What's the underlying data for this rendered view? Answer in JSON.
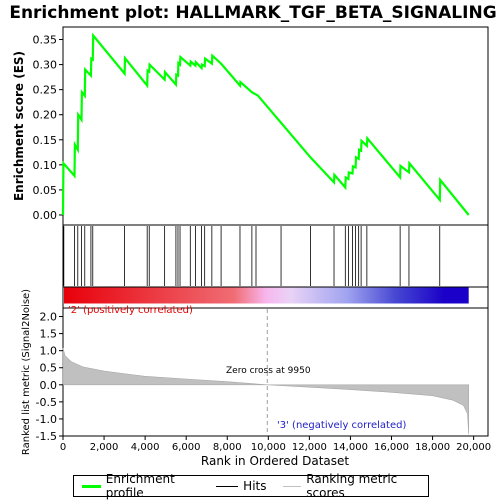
{
  "chart_data": {
    "type": "line",
    "title": "Enrichment plot: HALLMARK_TGF_BETA_SIGNALING",
    "x_label": "Rank in Ordered Dataset",
    "x_ticks": [
      0,
      2000,
      4000,
      6000,
      8000,
      10000,
      12000,
      14000,
      16000,
      18000,
      20000
    ],
    "x_tick_labels": [
      "0",
      "2,000",
      "4,000",
      "6,000",
      "8,000",
      "10,000",
      "12,000",
      "14,000",
      "16,000",
      "18,000",
      "20,000"
    ],
    "x_range": [
      0,
      20700
    ],
    "es_panel": {
      "y_label": "Enrichment score (ES)",
      "y_range": [
        -0.02,
        0.375
      ],
      "y_ticks": [
        0.0,
        0.05,
        0.1,
        0.15,
        0.2,
        0.25,
        0.3,
        0.35
      ],
      "y_tick_labels": [
        "0.00",
        "0.05",
        "0.10",
        "0.15",
        "0.20",
        "0.25",
        "0.30",
        "0.35"
      ],
      "series_name": "Enrichment profile",
      "color": "#00ff00",
      "points": [
        [
          0,
          0.0
        ],
        [
          20,
          0.103
        ],
        [
          560,
          0.078
        ],
        [
          580,
          0.14
        ],
        [
          720,
          0.13
        ],
        [
          740,
          0.2
        ],
        [
          900,
          0.19
        ],
        [
          920,
          0.245
        ],
        [
          1060,
          0.238
        ],
        [
          1080,
          0.29
        ],
        [
          1360,
          0.278
        ],
        [
          1380,
          0.312
        ],
        [
          1450,
          0.31
        ],
        [
          1470,
          0.358
        ],
        [
          3000,
          0.282
        ],
        [
          3020,
          0.313
        ],
        [
          4100,
          0.258
        ],
        [
          4120,
          0.288
        ],
        [
          4200,
          0.286
        ],
        [
          4220,
          0.3
        ],
        [
          4950,
          0.27
        ],
        [
          4970,
          0.285
        ],
        [
          5500,
          0.26
        ],
        [
          5520,
          0.28
        ],
        [
          5600,
          0.278
        ],
        [
          5620,
          0.303
        ],
        [
          5700,
          0.3
        ],
        [
          5720,
          0.315
        ],
        [
          6200,
          0.298
        ],
        [
          6220,
          0.306
        ],
        [
          6450,
          0.298
        ],
        [
          6470,
          0.305
        ],
        [
          6750,
          0.293
        ],
        [
          6770,
          0.3
        ],
        [
          6900,
          0.297
        ],
        [
          6920,
          0.312
        ],
        [
          7250,
          0.302
        ],
        [
          7270,
          0.318
        ],
        [
          7700,
          0.302
        ],
        [
          8620,
          0.258
        ],
        [
          8640,
          0.265
        ],
        [
          9200,
          0.245
        ],
        [
          9500,
          0.238
        ],
        [
          12050,
          0.115
        ],
        [
          13200,
          0.065
        ],
        [
          13220,
          0.08
        ],
        [
          13750,
          0.055
        ],
        [
          13770,
          0.075
        ],
        [
          13900,
          0.072
        ],
        [
          13920,
          0.085
        ],
        [
          14100,
          0.083
        ],
        [
          14120,
          0.097
        ],
        [
          14250,
          0.095
        ],
        [
          14270,
          0.115
        ],
        [
          14400,
          0.112
        ],
        [
          14420,
          0.13
        ],
        [
          14520,
          0.128
        ],
        [
          14540,
          0.148
        ],
        [
          14800,
          0.138
        ],
        [
          14820,
          0.153
        ],
        [
          16420,
          0.075
        ],
        [
          16440,
          0.098
        ],
        [
          16850,
          0.085
        ],
        [
          16870,
          0.103
        ],
        [
          18350,
          0.03
        ],
        [
          18370,
          0.07
        ],
        [
          19760,
          0.0
        ]
      ]
    },
    "hits": [
      40,
      560,
      720,
      900,
      1060,
      1360,
      1450,
      3000,
      4100,
      4200,
      4950,
      5500,
      5600,
      5700,
      6200,
      6450,
      6750,
      6900,
      7250,
      7700,
      8620,
      9200,
      9400,
      10620,
      12050,
      13200,
      13750,
      13900,
      14100,
      14250,
      14400,
      14520,
      14800,
      16420,
      16850,
      18350
    ],
    "gradient_bar": {
      "stops": [
        "#e8000a",
        "#f06d74",
        "#f7b7ee",
        "#e9d3f6",
        "#a0a3f0",
        "#4647d2",
        "#1a00c8"
      ],
      "pos_label": "'2' (positively correlated)",
      "neg_label": "'3' (negatively correlated)"
    },
    "metric_panel": {
      "y_label": "Ranked list metric (Signal2Noise)",
      "y_range": [
        -1.5,
        2.25
      ],
      "y_ticks": [
        -1.5,
        -1.0,
        -0.5,
        0.0,
        0.5,
        1.0,
        1.5,
        2.0
      ],
      "y_tick_labels": [
        "-1.5",
        "-1.0",
        "-0.5",
        "0.0",
        "0.5",
        "1.0",
        "1.5",
        "2.0"
      ],
      "series_name": "Ranking metric scores",
      "profile": [
        [
          0,
          1.08
        ],
        [
          100,
          0.85
        ],
        [
          400,
          0.68
        ],
        [
          1000,
          0.52
        ],
        [
          2000,
          0.4
        ],
        [
          4000,
          0.25
        ],
        [
          6000,
          0.17
        ],
        [
          8000,
          0.09
        ],
        [
          9950,
          0.0
        ],
        [
          12000,
          -0.07
        ],
        [
          14000,
          -0.14
        ],
        [
          16000,
          -0.22
        ],
        [
          18000,
          -0.32
        ],
        [
          19000,
          -0.45
        ],
        [
          19500,
          -0.6
        ],
        [
          19700,
          -0.85
        ],
        [
          19760,
          -1.45
        ]
      ],
      "zero_cross_label": "Zero cross at 9950",
      "zero_cross": 9950
    },
    "legend": {
      "items": [
        "Enrichment profile",
        "Hits",
        "Ranking metric scores"
      ],
      "colors": [
        "#00ff00",
        "#000000",
        "#c0c0c0"
      ]
    }
  }
}
